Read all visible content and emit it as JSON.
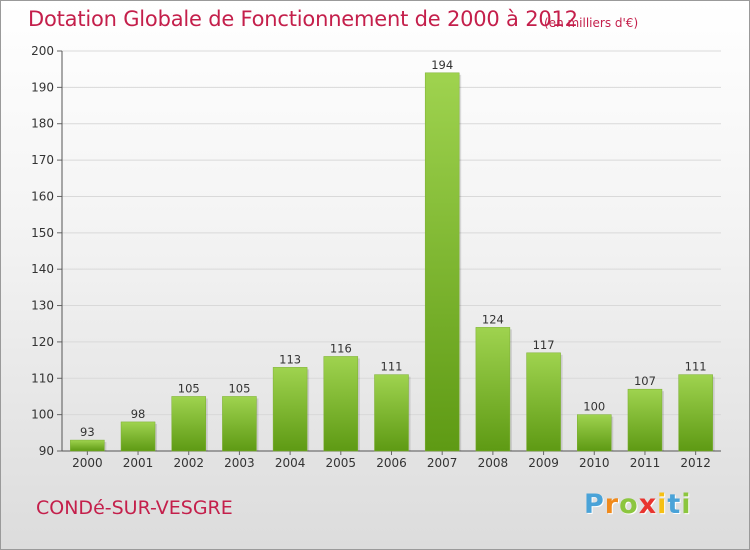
{
  "title": "Dotation Globale de Fonctionnement de 2000 à 2012",
  "subtitle": "(en milliers d'€)",
  "city": "CONDé-SUR-VESGRE",
  "logo": {
    "letters": [
      "P",
      "r",
      "o",
      "x",
      "i",
      "t",
      "i"
    ],
    "colors": [
      "#4aa3d8",
      "#f08a1c",
      "#8cc63f",
      "#e8342e",
      "#f6c013",
      "#4aa3d8",
      "#8cc63f"
    ]
  },
  "colors": {
    "title": "#c41f4b",
    "bar_top": "#9fd34f",
    "bar_bottom": "#5e9a14",
    "grid": "#d9d9d9"
  },
  "chart_data": {
    "type": "bar",
    "categories": [
      "2000",
      "2001",
      "2002",
      "2003",
      "2004",
      "2005",
      "2006",
      "2007",
      "2008",
      "2009",
      "2010",
      "2011",
      "2012"
    ],
    "values": [
      93,
      98,
      105,
      105,
      113,
      116,
      111,
      194,
      124,
      117,
      100,
      107,
      111
    ],
    "ylim": [
      90,
      200
    ],
    "yticks": [
      90,
      100,
      110,
      120,
      130,
      140,
      150,
      160,
      170,
      180,
      190,
      200
    ],
    "grid": true,
    "xlabel": "",
    "ylabel": ""
  }
}
